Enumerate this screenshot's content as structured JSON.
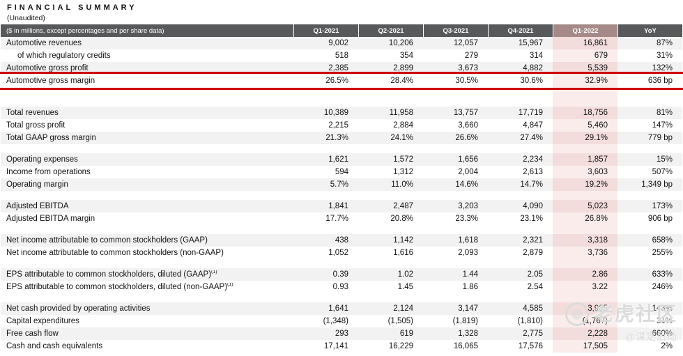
{
  "page": {
    "title": "FINANCIAL SUMMARY",
    "subtitle": "(Unaudited)"
  },
  "table": {
    "header": {
      "label": "($ in millions, except percentages and per share data)",
      "columns": [
        "Q1-2021",
        "Q2-2021",
        "Q3-2021",
        "Q4-2021",
        "Q1-2022",
        "YoY"
      ]
    },
    "highlighted_column": "Q1-2022",
    "annotated_row": "Automotive gross margin",
    "sections": [
      {
        "rows": [
          {
            "label": "Automotive revenues",
            "values": [
              "9,002",
              "10,206",
              "12,057",
              "15,967",
              "16,861",
              "87%"
            ]
          },
          {
            "label": "of which regulatory credits",
            "indent": true,
            "values": [
              "518",
              "354",
              "279",
              "314",
              "679",
              "31%"
            ]
          },
          {
            "label": "Automotive gross profit",
            "values": [
              "2,385",
              "2,899",
              "3,673",
              "4,882",
              "5,539",
              "132%"
            ]
          },
          {
            "label": "Automotive gross margin",
            "highlighted": true,
            "values": [
              "26.5%",
              "28.4%",
              "30.5%",
              "30.6%",
              "32.9%",
              "636 bp"
            ]
          }
        ]
      },
      {
        "rows": [
          {
            "label": "Total revenues",
            "values": [
              "10,389",
              "11,958",
              "13,757",
              "17,719",
              "18,756",
              "81%"
            ]
          },
          {
            "label": "Total gross profit",
            "values": [
              "2,215",
              "2,884",
              "3,660",
              "4,847",
              "5,460",
              "147%"
            ]
          },
          {
            "label": "Total GAAP gross margin",
            "values": [
              "21.3%",
              "24.1%",
              "26.6%",
              "27.4%",
              "29.1%",
              "779 bp"
            ]
          }
        ]
      },
      {
        "rows": [
          {
            "label": "Operating expenses",
            "values": [
              "1,621",
              "1,572",
              "1,656",
              "2,234",
              "1,857",
              "15%"
            ]
          },
          {
            "label": "Income from operations",
            "values": [
              "594",
              "1,312",
              "2,004",
              "2,613",
              "3,603",
              "507%"
            ]
          },
          {
            "label": "Operating margin",
            "values": [
              "5.7%",
              "11.0%",
              "14.6%",
              "14.7%",
              "19.2%",
              "1,349 bp"
            ]
          }
        ]
      },
      {
        "rows": [
          {
            "label": "Adjusted EBITDA",
            "values": [
              "1,841",
              "2,487",
              "3,203",
              "4,090",
              "5,023",
              "173%"
            ]
          },
          {
            "label": "Adjusted EBITDA margin",
            "values": [
              "17.7%",
              "20.8%",
              "23.3%",
              "23.1%",
              "26.8%",
              "906 bp"
            ]
          }
        ]
      },
      {
        "rows": [
          {
            "label": "Net income attributable to common stockholders (GAAP)",
            "values": [
              "438",
              "1,142",
              "1,618",
              "2,321",
              "3,318",
              "658%"
            ]
          },
          {
            "label": "Net income attributable to common stockholders (non-GAAP)",
            "values": [
              "1,052",
              "1,616",
              "2,093",
              "2,879",
              "3,736",
              "255%"
            ]
          }
        ]
      },
      {
        "rows": [
          {
            "label": "EPS attributable to common stockholders, diluted (GAAP)",
            "footnote": "(1)",
            "values": [
              "0.39",
              "1.02",
              "1.44",
              "2.05",
              "2.86",
              "633%"
            ]
          },
          {
            "label": "EPS attributable to common stockholders, diluted (non-GAAP)",
            "footnote": "(1)",
            "values": [
              "0.93",
              "1.45",
              "1.86",
              "2.54",
              "3.22",
              "246%"
            ]
          }
        ]
      },
      {
        "rows": [
          {
            "label": "Net cash provided by operating activities",
            "values": [
              "1,641",
              "2,124",
              "3,147",
              "4,585",
              "3,995",
              "143%"
            ]
          },
          {
            "label": "Capital expenditures",
            "values": [
              "(1,348)",
              "(1,505)",
              "(1,819)",
              "(1,810)",
              "(1,767)",
              "31%"
            ]
          },
          {
            "label": "Free cash flow",
            "values": [
              "293",
              "619",
              "1,328",
              "2,775",
              "2,228",
              "660%"
            ]
          },
          {
            "label": "Cash and cash equivalents",
            "values": [
              "17,141",
              "16,229",
              "16,065",
              "17,576",
              "17,505",
              "2%"
            ]
          }
        ]
      }
    ]
  },
  "watermark": {
    "community": "老虎社区",
    "handle": "@谋定后动"
  },
  "colors": {
    "header_bg": "#58595B",
    "header_highlight_bg": "#A68A8A",
    "row_stripe": "#F2F2F2",
    "highlight_col_stripe": "#F3DCDC",
    "highlight_col_plain": "#FBECEC",
    "annotation_red": "#CC0000"
  }
}
